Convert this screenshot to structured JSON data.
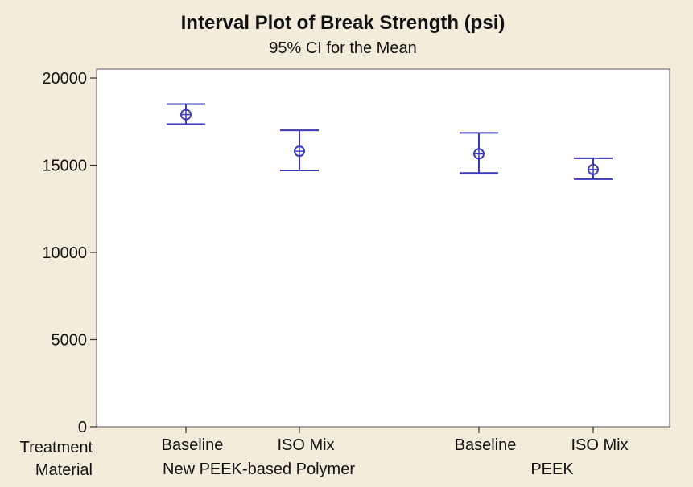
{
  "chart_data": {
    "type": "interval",
    "title": "Interval Plot of Break Strength (psi)",
    "subtitle": "95% CI for the Mean",
    "ylim": [
      0,
      20000
    ],
    "yticks": [
      0,
      5000,
      10000,
      15000,
      20000
    ],
    "grid": false,
    "row_labels": [
      "Treatment",
      "Material"
    ],
    "groups": [
      {
        "name": "New PEEK-based Polymer",
        "categories": [
          "Baseline",
          "ISO Mix"
        ]
      },
      {
        "name": "PEEK",
        "categories": [
          "Baseline",
          "ISO Mix"
        ]
      }
    ],
    "points": [
      {
        "treatment": "Baseline",
        "material": "New PEEK-based Polymer",
        "mean": 17900,
        "lower": 17350,
        "upper": 18500
      },
      {
        "treatment": "ISO Mix",
        "material": "New PEEK-based Polymer",
        "mean": 15800,
        "lower": 14700,
        "upper": 17000
      },
      {
        "treatment": "Baseline",
        "material": "PEEK",
        "mean": 15650,
        "lower": 14550,
        "upper": 16850
      },
      {
        "treatment": "ISO Mix",
        "material": "PEEK",
        "mean": 14750,
        "lower": 14200,
        "upper": 15400
      }
    ],
    "colors": {
      "interval": "#3a3ab8",
      "background": "#f4ecdb",
      "plot_area": "#ffffff"
    }
  }
}
